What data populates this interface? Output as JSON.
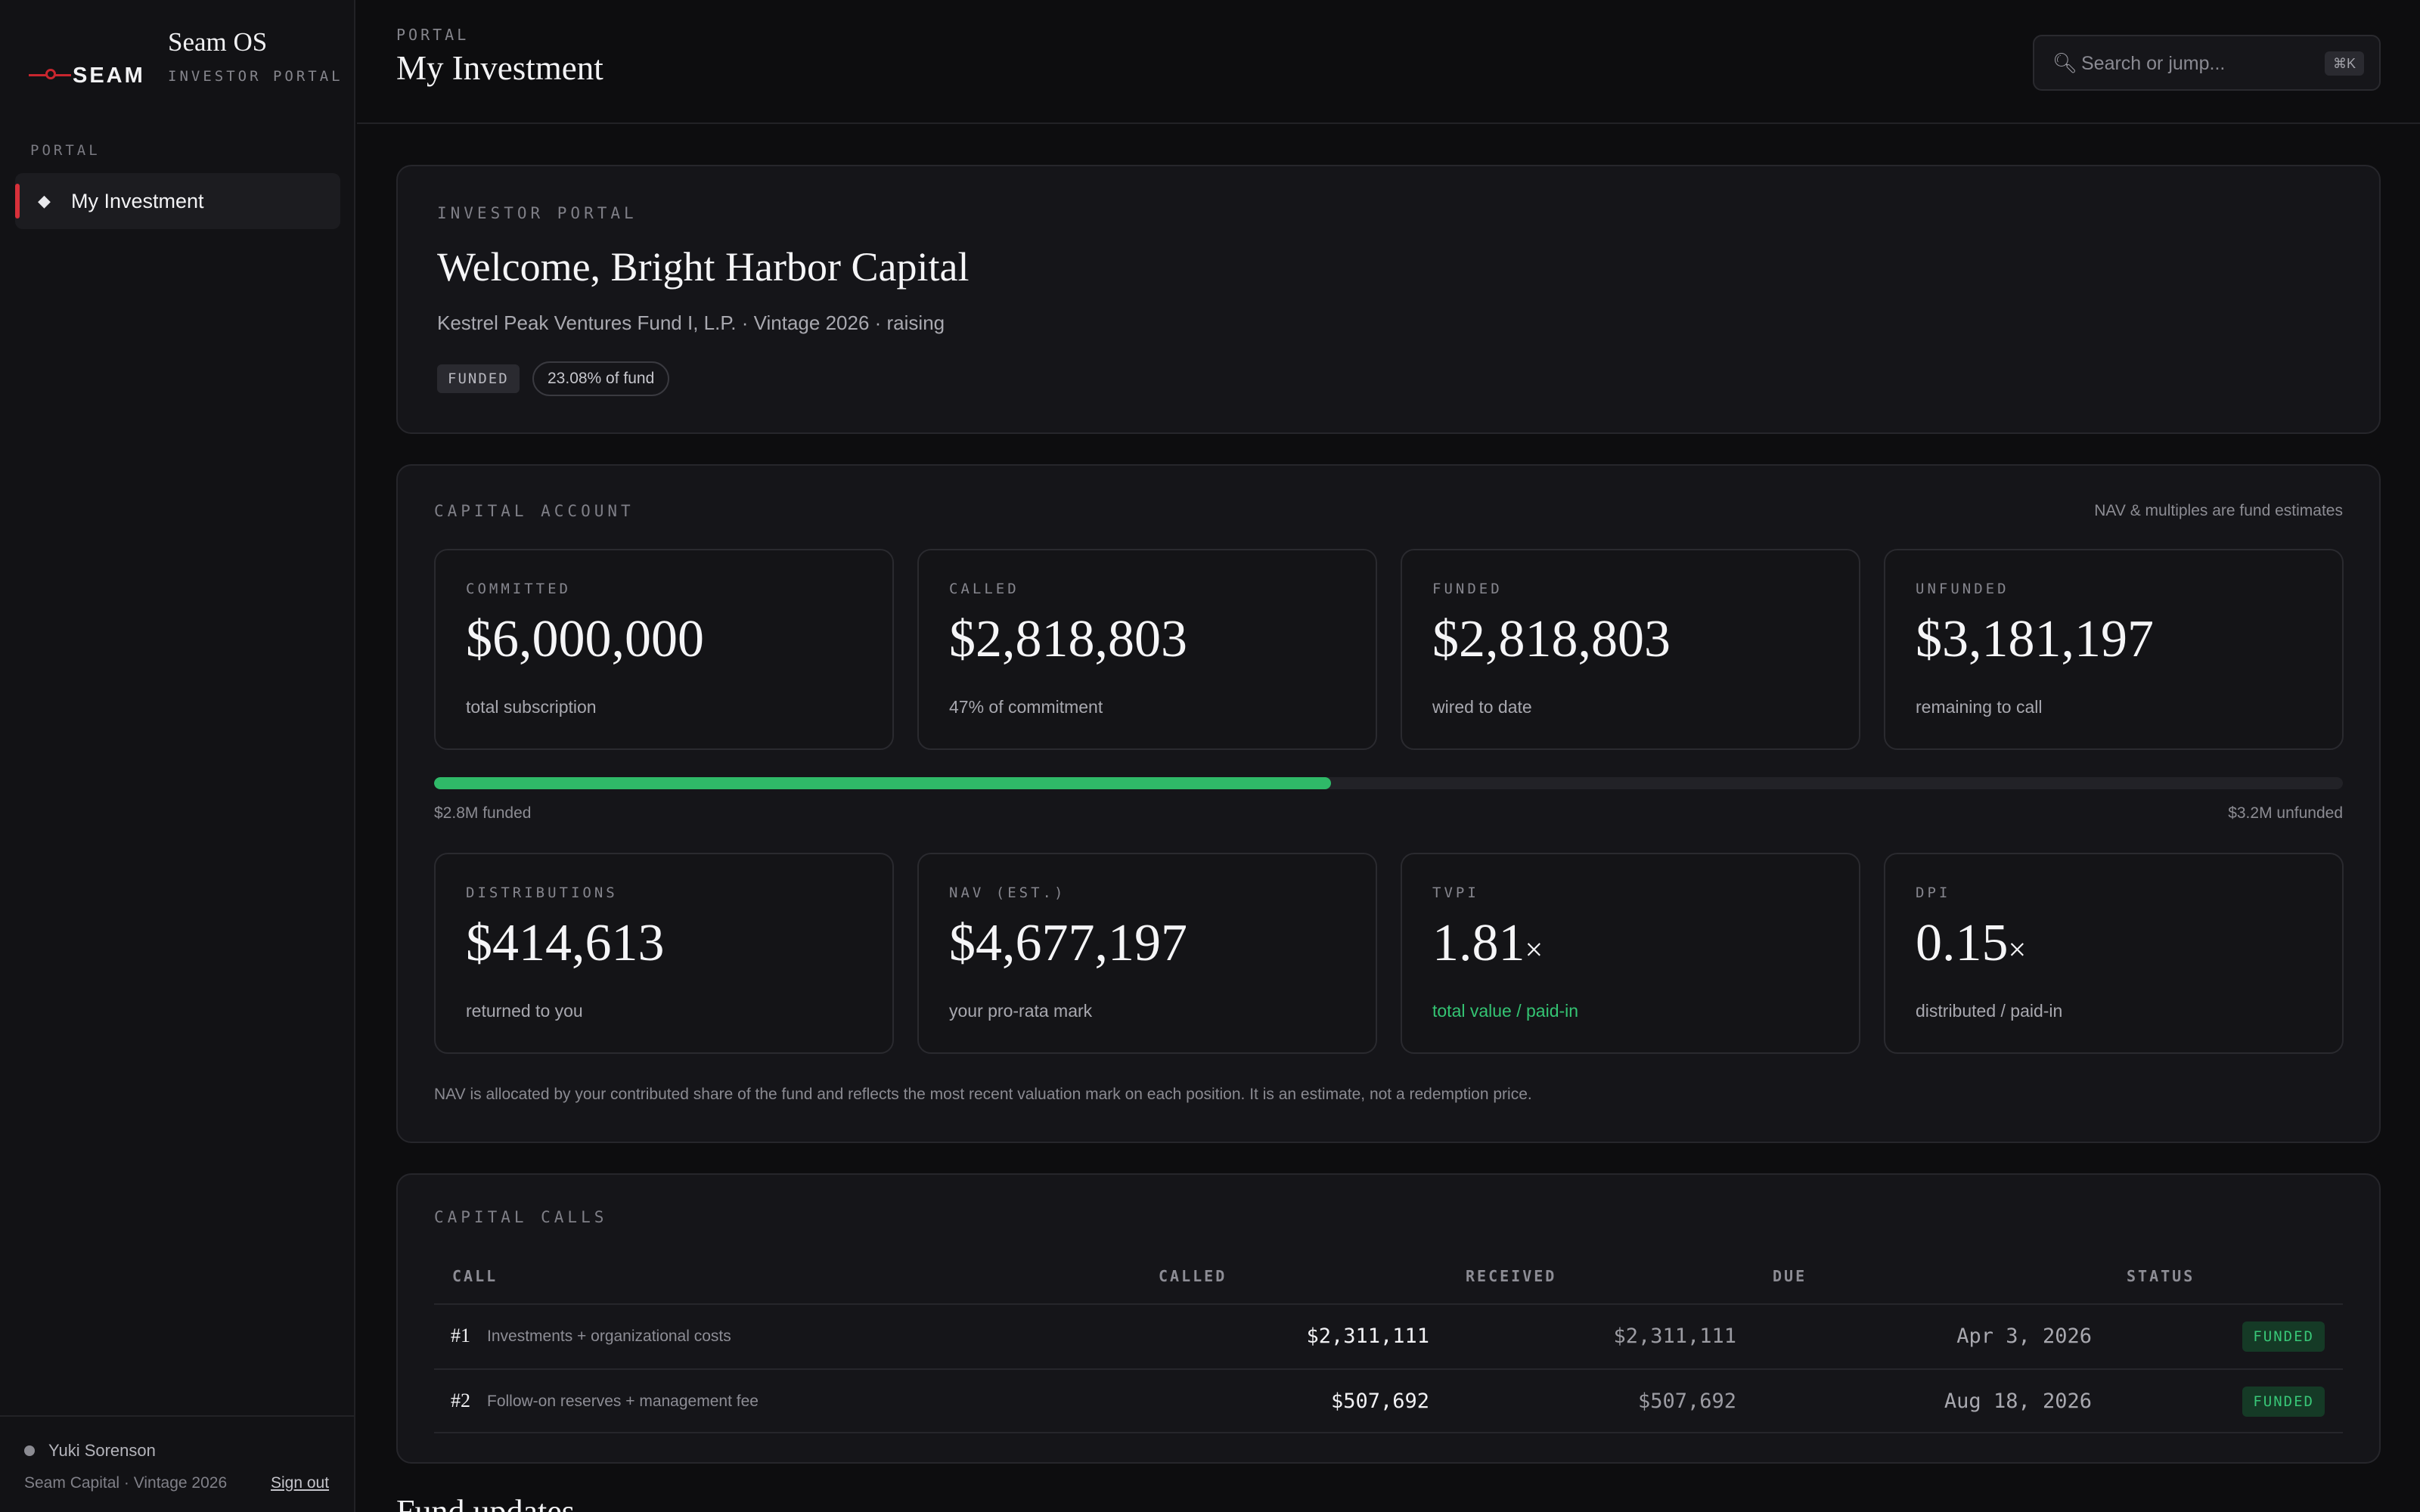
{
  "sidebar": {
    "logo_text": "SEAM",
    "brand_name": "Seam OS",
    "brand_sub": "INVESTOR PORTAL",
    "section": "PORTAL",
    "items": [
      {
        "label": "My Investment",
        "icon": "diamond-icon"
      }
    ],
    "user_name": "Yuki Sorenson",
    "user_org": "Seam Capital · Vintage 2026",
    "sign_out": "Sign out"
  },
  "header": {
    "breadcrumb": "PORTAL",
    "title": "My Investment",
    "search_placeholder": "Search or jump...",
    "shortcut": "⌘K"
  },
  "welcome": {
    "eyebrow": "INVESTOR PORTAL",
    "title": "Welcome, Bright Harbor Capital",
    "subtitle": "Kestrel Peak Ventures Fund I, L.P. · Vintage 2026 · raising",
    "badge": "FUNDED",
    "share": "23.08% of fund"
  },
  "capital": {
    "eyebrow": "CAPITAL ACCOUNT",
    "note": "NAV & multiples are fund estimates",
    "metrics": [
      {
        "label": "COMMITTED",
        "value": "$6,000,000",
        "sub": "total subscription"
      },
      {
        "label": "CALLED",
        "value": "$2,818,803",
        "sub": "47% of commitment"
      },
      {
        "label": "FUNDED",
        "value": "$2,818,803",
        "sub": "wired to date"
      },
      {
        "label": "UNFUNDED",
        "value": "$3,181,197",
        "sub": "remaining to call"
      },
      {
        "label": "DISTRIBUTIONS",
        "value": "$414,613",
        "sub": "returned to you"
      },
      {
        "label": "NAV (EST.)",
        "value": "$4,677,197",
        "sub": "your pro-rata mark"
      },
      {
        "label": "TVPI",
        "value": "1.81",
        "unit": "×",
        "sub": "total value / paid-in"
      },
      {
        "label": "DPI",
        "value": "0.15",
        "unit": "×",
        "sub": "distributed / paid-in"
      }
    ],
    "progress_fraction": 0.47,
    "progress_left": "$2.8M funded",
    "progress_right": "$3.2M unfunded",
    "footnote": "NAV is allocated by your contributed share of the fund and reflects the most recent valuation mark on each position. It is an estimate, not a redemption price.",
    "accent_green": "#2fb968"
  },
  "calls": {
    "eyebrow": "CAPITAL CALLS",
    "columns": [
      "CALL",
      "CALLED",
      "RECEIVED",
      "DUE",
      "STATUS"
    ],
    "rows": [
      {
        "no": "#1",
        "desc": "Investments + organizational costs",
        "called": "$2,311,111",
        "received": "$2,311,111",
        "due": "Apr 3, 2026",
        "status": "FUNDED"
      },
      {
        "no": "#2",
        "desc": "Follow-on reserves + management fee",
        "called": "$507,692",
        "received": "$507,692",
        "due": "Aug 18, 2026",
        "status": "FUNDED"
      }
    ]
  },
  "updates_title": "Fund updates"
}
